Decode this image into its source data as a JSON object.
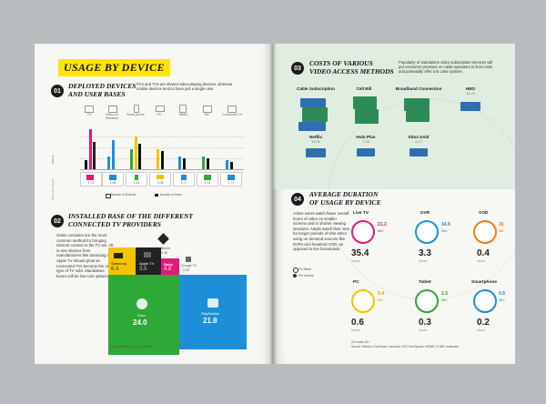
{
  "left": {
    "title": "USAGE BY DEVICE",
    "s1": {
      "num": "01",
      "heading": [
        "DEPLOYED DEVICES",
        "AND USER BASES"
      ],
      "text": "PCs and TVs are shared video-playing devices, whereas mobile devices tend to have just a single user.",
      "legend_devices": "Number of Devices",
      "legend_users": "Number of Users",
      "y_label": "Millions",
      "users_label": "Users per Device",
      "categories": [
        "TV",
        "Video on Streamer",
        "Smart phone",
        "PC",
        "Tablet",
        "Wii",
        "Connected TV"
      ],
      "users_per_device": [
        "1.74",
        "1.58",
        "1.46",
        "1.08",
        "0.77",
        "1.74",
        "1.74"
      ]
    },
    "s2": {
      "num": "02",
      "heading": [
        "INSTALLED BASE OF THE DIFFERENT",
        "CONNECTED TV PROVIDERS"
      ],
      "text": "Game consoles are the most common method for bringing internet content to the TV set. All-in-one devices from manufacturers like Samsung and Apple TV should grow as connected TVs become the only type of TV sold. Standalone boxes will be low-cost options.",
      "source": "Source: MSNBC & NBC estimates",
      "tiles": {
        "roku": {
          "label": "Boxee",
          "value": "0.35"
        },
        "samsung": {
          "label": "Samsung",
          "value": "6.4"
        },
        "apple": {
          "label": "Apple TV",
          "value": "3.5"
        },
        "roku2": {
          "label": "Roku",
          "value": "4.8"
        },
        "google": {
          "label": "Google TV",
          "value": "0.05"
        },
        "xbox": {
          "label": "Xbox",
          "value": "24.0"
        },
        "playstation": {
          "label": "PlayStation",
          "value": "21.8"
        }
      },
      "colors": {
        "xbox": "#2ea836",
        "playstation": "#1c8fd8",
        "samsung": "#f2c500",
        "apple": "#222222",
        "roku": "#e2187b",
        "boxee": "#444444",
        "google": "#9a9a9a"
      }
    }
  },
  "right": {
    "s3": {
      "num": "03",
      "heading": [
        "COSTS OF VARIOUS",
        "VIDEO ACCESS METHODS"
      ],
      "text": "Popularity of standalone video subscription services will put consumer pressure on cable operators to limit costs and potentially offer a la carte options.",
      "methods": [
        {
          "name": "Cable Subscription",
          "value": ""
        },
        {
          "name": "Cell Bill",
          "value": ""
        },
        {
          "name": "Broadband Connection",
          "value": ""
        },
        {
          "name": "HBO",
          "value": "15-20"
        },
        {
          "name": "Netflix",
          "value": "15.98"
        },
        {
          "name": "Hulu Plus",
          "value": "7.99"
        },
        {
          "name": "Xbox Gold",
          "value": "4.17"
        }
      ]
    },
    "s4": {
      "num": "04",
      "heading": [
        "AVERAGE DURATION",
        "OF USAGE BY DEVICE"
      ],
      "text": "Active users watch fewer overall hours of video on smaller screens and in shorter viewing sessions. Adults watch their sets for longer periods of time when using on-demand sources like DVRs and headend VOD, as opposed to live broadcasts.",
      "legend_week": "Per Week",
      "legend_session": "Per Session",
      "source_label": "US adults 18+",
      "source": "Source: Nielsen, ComScore, Horowitz, LRG FourSquare, MSNBC & NBC estimates",
      "devices": [
        {
          "name": "Live TV",
          "mins": "21.2",
          "unit": "Min",
          "hours": "35.4",
          "color": "#e2187b"
        },
        {
          "name": "DVR",
          "mins": "34.8",
          "unit": "Min",
          "hours": "3.3",
          "color": "#1c8fd8"
        },
        {
          "name": "VOD",
          "mins": "36",
          "unit": "Min",
          "hours": "0.4",
          "color": "#f07a1a"
        },
        {
          "name": "PC",
          "mins": "5.4",
          "unit": "Min",
          "hours": "0.6",
          "color": "#f2c500"
        },
        {
          "name": "Tablet",
          "mins": "3.3",
          "unit": "Min",
          "hours": "0.3",
          "color": "#2ea836"
        },
        {
          "name": "Smartphone",
          "mins": "0.8",
          "unit": "Min",
          "hours": "0.2",
          "color": "#1c8fd8"
        }
      ],
      "hours_unit": "Hours"
    }
  }
}
